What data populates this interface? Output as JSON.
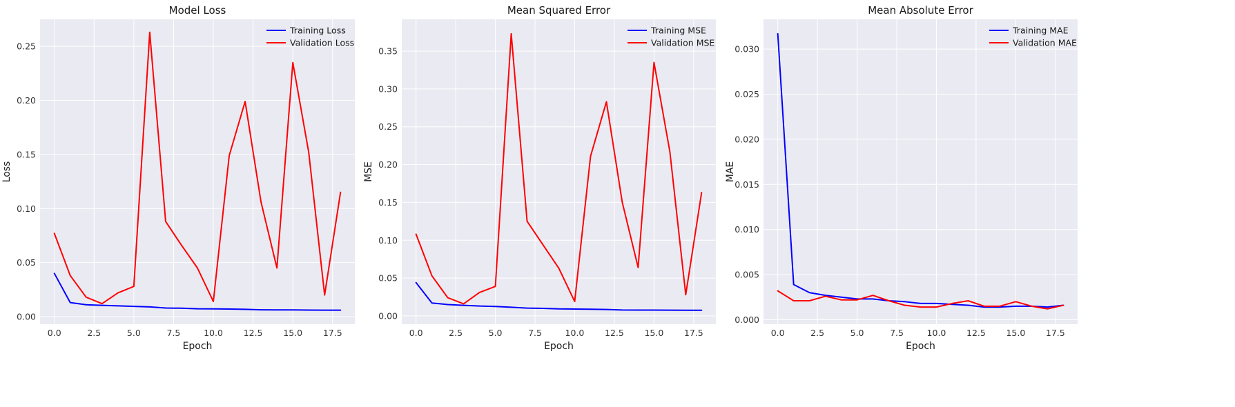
{
  "figure": {
    "background": "#ffffff",
    "plot_background": "#eaeaf2",
    "grid_color": "#ffffff"
  },
  "chart_data": [
    {
      "type": "line",
      "title": "Model Loss",
      "xlabel": "Epoch",
      "ylabel": "Loss",
      "xlim": [
        -0.9,
        18.9
      ],
      "ylim": [
        -0.007,
        0.275
      ],
      "xticks": [
        0,
        2.5,
        5,
        7.5,
        10,
        12.5,
        15,
        17.5
      ],
      "xtick_labels": [
        "0.0",
        "2.5",
        "5.0",
        "7.5",
        "10.0",
        "12.5",
        "15.0",
        "17.5"
      ],
      "yticks": [
        0,
        0.05,
        0.1,
        0.15,
        0.2,
        0.25
      ],
      "ytick_labels": [
        "0.00",
        "0.05",
        "0.10",
        "0.15",
        "0.20",
        "0.25"
      ],
      "grid": true,
      "legend": "top-right",
      "x": [
        0,
        1,
        2,
        3,
        4,
        5,
        6,
        7,
        8,
        9,
        10,
        11,
        12,
        13,
        14,
        15,
        16,
        17,
        18
      ],
      "series": [
        {
          "name": "Training Loss",
          "color": "#0000ff",
          "values": [
            0.04,
            0.013,
            0.011,
            0.0105,
            0.01,
            0.0095,
            0.009,
            0.008,
            0.0078,
            0.0073,
            0.0072,
            0.007,
            0.0068,
            0.0063,
            0.0062,
            0.0062,
            0.0061,
            0.006,
            0.006
          ]
        },
        {
          "name": "Validation Loss",
          "color": "#ff0000",
          "values": [
            0.077,
            0.038,
            0.018,
            0.012,
            0.022,
            0.028,
            0.263,
            0.088,
            0.066,
            0.045,
            0.014,
            0.149,
            0.199,
            0.106,
            0.045,
            0.235,
            0.152,
            0.02,
            0.115
          ]
        }
      ]
    },
    {
      "type": "line",
      "title": "Mean Squared Error",
      "xlabel": "Epoch",
      "ylabel": "MSE",
      "xlim": [
        -0.9,
        18.9
      ],
      "ylim": [
        -0.011,
        0.392
      ],
      "xticks": [
        0,
        2.5,
        5,
        7.5,
        10,
        12.5,
        15,
        17.5
      ],
      "xtick_labels": [
        "0.0",
        "2.5",
        "5.0",
        "7.5",
        "10.0",
        "12.5",
        "15.0",
        "17.5"
      ],
      "yticks": [
        0,
        0.05,
        0.1,
        0.15,
        0.2,
        0.25,
        0.3,
        0.35
      ],
      "ytick_labels": [
        "0.00",
        "0.05",
        "0.10",
        "0.15",
        "0.20",
        "0.25",
        "0.30",
        "0.35"
      ],
      "grid": true,
      "legend": "top-right",
      "x": [
        0,
        1,
        2,
        3,
        4,
        5,
        6,
        7,
        8,
        9,
        10,
        11,
        12,
        13,
        14,
        15,
        16,
        17,
        18
      ],
      "series": [
        {
          "name": "Training MSE",
          "color": "#0000ff",
          "values": [
            0.044,
            0.017,
            0.015,
            0.014,
            0.013,
            0.0125,
            0.0115,
            0.0103,
            0.01,
            0.0093,
            0.0091,
            0.0088,
            0.0085,
            0.0078,
            0.0077,
            0.0077,
            0.0076,
            0.0075,
            0.0075
          ]
        },
        {
          "name": "Validation MSE",
          "color": "#ff0000",
          "values": [
            0.108,
            0.053,
            0.024,
            0.016,
            0.031,
            0.039,
            0.373,
            0.125,
            0.094,
            0.063,
            0.019,
            0.211,
            0.283,
            0.15,
            0.064,
            0.335,
            0.217,
            0.028,
            0.163
          ]
        }
      ]
    },
    {
      "type": "line",
      "title": "Mean Absolute Error",
      "xlabel": "Epoch",
      "ylabel": "MAE",
      "xlim": [
        -0.9,
        18.9
      ],
      "ylim": [
        -0.0005,
        0.0333
      ],
      "xticks": [
        0,
        2.5,
        5,
        7.5,
        10,
        12.5,
        15,
        17.5
      ],
      "xtick_labels": [
        "0.0",
        "2.5",
        "5.0",
        "7.5",
        "10.0",
        "12.5",
        "15.0",
        "17.5"
      ],
      "yticks": [
        0,
        0.005,
        0.01,
        0.015,
        0.02,
        0.025,
        0.03
      ],
      "ytick_labels": [
        "0.000",
        "0.005",
        "0.010",
        "0.015",
        "0.020",
        "0.025",
        "0.030"
      ],
      "grid": true,
      "legend": "top-right",
      "x": [
        0,
        1,
        2,
        3,
        4,
        5,
        6,
        7,
        8,
        9,
        10,
        11,
        12,
        13,
        14,
        15,
        16,
        17,
        18
      ],
      "series": [
        {
          "name": "Training MAE",
          "color": "#0000ff",
          "values": [
            0.0317,
            0.0039,
            0.003,
            0.0027,
            0.0025,
            0.0023,
            0.0023,
            0.0021,
            0.002,
            0.0018,
            0.0018,
            0.0017,
            0.0016,
            0.0014,
            0.0014,
            0.0015,
            0.0015,
            0.0014,
            0.0016
          ]
        },
        {
          "name": "Validation MAE",
          "color": "#ff0000",
          "values": [
            0.0032,
            0.0021,
            0.0021,
            0.0026,
            0.0022,
            0.0022,
            0.0027,
            0.0021,
            0.0016,
            0.0014,
            0.0014,
            0.0018,
            0.0021,
            0.0015,
            0.0015,
            0.002,
            0.0015,
            0.0012,
            0.0016
          ]
        }
      ]
    }
  ]
}
